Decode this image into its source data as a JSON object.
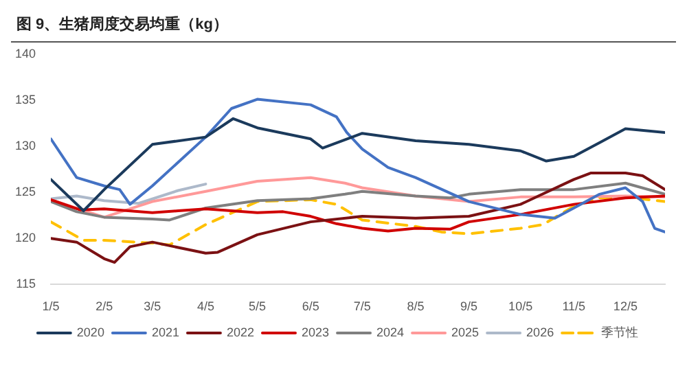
{
  "chart_data": {
    "type": "line",
    "title": "图 9、生猪周度交易均重（kg）",
    "xlim": [
      "--01-05",
      "--12-28"
    ],
    "xticks": [
      {
        "value": "--01-05",
        "label": "1/5"
      },
      {
        "value": "--02-05",
        "label": "2/5"
      },
      {
        "value": "--03-05",
        "label": "3/5"
      },
      {
        "value": "--04-05",
        "label": "4/5"
      },
      {
        "value": "--05-05",
        "label": "5/5"
      },
      {
        "value": "--06-05",
        "label": "6/5"
      },
      {
        "value": "--07-05",
        "label": "7/5"
      },
      {
        "value": "--08-05",
        "label": "8/5"
      },
      {
        "value": "--09-05",
        "label": "9/5"
      },
      {
        "value": "--10-05",
        "label": "10/5"
      },
      {
        "value": "--11-05",
        "label": "11/5"
      },
      {
        "value": "--12-05",
        "label": "12/5"
      }
    ],
    "ylim": [
      115,
      140
    ],
    "yticks": [
      115,
      120,
      125,
      130,
      135,
      140
    ],
    "grid": false,
    "legend": "bottom",
    "marker": "none",
    "series": [
      {
        "name": "2020",
        "color": "#1b3a5c",
        "x": [
          "--01-05",
          "--01-24",
          "--02-05",
          "--03-05",
          "--04-05",
          "--04-21",
          "--05-05",
          "--06-05",
          "--06-12",
          "--07-05",
          "--08-05",
          "--09-05",
          "--10-05",
          "--10-20",
          "--11-05",
          "--11-20",
          "--12-05",
          "--12-28"
        ],
        "values": [
          126.4,
          123.0,
          125.3,
          130.2,
          131.0,
          133.0,
          132.0,
          130.8,
          129.8,
          131.4,
          130.6,
          130.2,
          129.5,
          128.4,
          128.9,
          130.4,
          131.9,
          131.5
        ]
      },
      {
        "name": "2021",
        "color": "#4472c4",
        "x": [
          "--01-05",
          "--01-20",
          "--02-05",
          "--02-14",
          "--02-20",
          "--03-05",
          "--04-05",
          "--04-20",
          "--05-05",
          "--06-05",
          "--06-20",
          "--06-26",
          "--07-05",
          "--07-20",
          "--08-05",
          "--09-05",
          "--10-05",
          "--10-25",
          "--11-05",
          "--11-20",
          "--12-05",
          "--12-15",
          "--12-22",
          "--12-28"
        ],
        "values": [
          130.8,
          126.6,
          125.7,
          125.3,
          123.7,
          125.7,
          131.0,
          134.1,
          135.1,
          134.5,
          133.2,
          131.5,
          129.7,
          127.7,
          126.6,
          124.0,
          122.6,
          122.2,
          123.3,
          124.8,
          125.5,
          124.0,
          121.1,
          120.7
        ]
      },
      {
        "name": "2022",
        "color": "#7b1113",
        "x": [
          "--01-05",
          "--01-20",
          "--02-05",
          "--02-11",
          "--02-20",
          "--03-05",
          "--04-05",
          "--04-12",
          "--05-05",
          "--06-05",
          "--07-05",
          "--08-05",
          "--09-05",
          "--10-05",
          "--11-05",
          "--11-15",
          "--12-05",
          "--12-15",
          "--12-28"
        ],
        "values": [
          120.0,
          119.6,
          117.8,
          117.4,
          119.1,
          119.6,
          118.4,
          118.5,
          120.4,
          121.8,
          122.4,
          122.2,
          122.4,
          123.7,
          126.4,
          127.1,
          127.1,
          126.8,
          125.3
        ]
      },
      {
        "name": "2023",
        "color": "#d00000",
        "x": [
          "--01-05",
          "--01-22",
          "--02-05",
          "--03-05",
          "--03-20",
          "--04-05",
          "--05-05",
          "--05-20",
          "--06-05",
          "--06-20",
          "--07-05",
          "--07-20",
          "--08-05",
          "--08-25",
          "--09-05",
          "--10-05",
          "--11-05",
          "--12-05",
          "--12-28"
        ],
        "values": [
          124.2,
          123.1,
          123.2,
          122.8,
          123.0,
          123.2,
          122.8,
          122.9,
          122.4,
          121.6,
          121.1,
          120.8,
          121.1,
          121.0,
          121.8,
          122.6,
          123.7,
          124.4,
          124.6
        ]
      },
      {
        "name": "2024",
        "color": "#7f7f7f",
        "x": [
          "--01-05",
          "--01-20",
          "--02-05",
          "--03-05",
          "--03-15",
          "--04-05",
          "--05-05",
          "--06-05",
          "--06-25",
          "--07-05",
          "--08-05",
          "--08-25",
          "--09-05",
          "--10-05",
          "--11-05",
          "--12-05",
          "--12-28"
        ],
        "values": [
          124.0,
          122.9,
          122.3,
          122.1,
          122.0,
          123.3,
          124.1,
          124.3,
          124.8,
          125.1,
          124.6,
          124.4,
          124.8,
          125.3,
          125.3,
          126.0,
          124.8
        ]
      },
      {
        "name": "2025",
        "color": "#ff9999",
        "x": [
          "--01-05",
          "--02-05",
          "--03-05",
          "--04-05",
          "--05-05",
          "--06-05",
          "--06-25",
          "--07-05",
          "--08-05",
          "--09-05",
          "--10-05",
          "--11-05",
          "--12-05",
          "--12-28"
        ],
        "values": [
          124.2,
          122.3,
          124.0,
          125.1,
          126.2,
          126.6,
          126.0,
          125.5,
          124.6,
          124.0,
          124.5,
          124.5,
          124.6,
          124.5
        ]
      },
      {
        "name": "2026",
        "color": "#adb9ca",
        "x": [
          "--01-05",
          "--01-20",
          "--02-05",
          "--02-25",
          "--03-20",
          "--04-05"
        ],
        "values": [
          124.3,
          124.6,
          124.1,
          123.8,
          125.2,
          125.9
        ]
      },
      {
        "name": "季节性",
        "color": "#ffc000",
        "line_style": "dashed",
        "x": [
          "--01-05",
          "--01-24",
          "--02-05",
          "--03-05",
          "--03-15",
          "--04-05",
          "--05-05",
          "--06-05",
          "--06-20",
          "--07-05",
          "--08-05",
          "--08-20",
          "--09-05",
          "--10-05",
          "--10-18",
          "--11-05",
          "--11-20",
          "--12-05",
          "--12-28"
        ],
        "values": [
          121.8,
          119.8,
          119.8,
          119.5,
          119.3,
          121.5,
          124.0,
          124.2,
          123.7,
          122.0,
          121.3,
          120.7,
          120.5,
          121.1,
          121.5,
          123.5,
          124.4,
          124.5,
          124.0
        ]
      }
    ]
  }
}
